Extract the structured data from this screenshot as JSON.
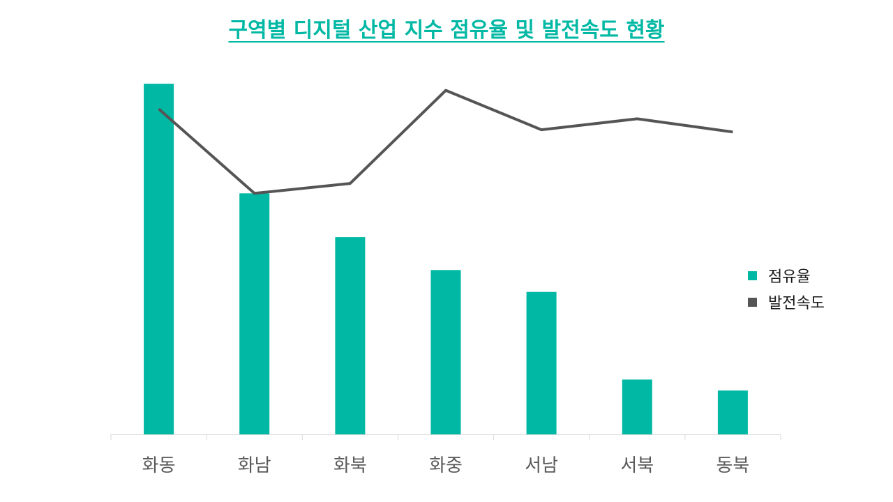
{
  "colors": {
    "bar": "#00b8a3",
    "line": "#555555",
    "title": "#00b8a3",
    "axis": "#d9d9d9",
    "tick_text": "#595959"
  },
  "chart_data": {
    "type": "bar",
    "title": "구역별 디지털 산업 지수 점유율 및 발전속도 현황",
    "categories": [
      "화동",
      "화남",
      "화북",
      "화중",
      "서남",
      "서북",
      "동북"
    ],
    "series": [
      {
        "name": "점유율",
        "type": "bar",
        "values": [
          32.0,
          22.0,
          18.0,
          15.0,
          13.0,
          5.0,
          4.0
        ]
      },
      {
        "name": "발전속도",
        "type": "line",
        "values": [
          29.7,
          22.0,
          22.9,
          31.4,
          27.8,
          28.8,
          27.6
        ]
      }
    ],
    "xlabel": "",
    "ylabel": "",
    "ylim": [
      0,
      35
    ],
    "grid": false,
    "legend": "right"
  }
}
